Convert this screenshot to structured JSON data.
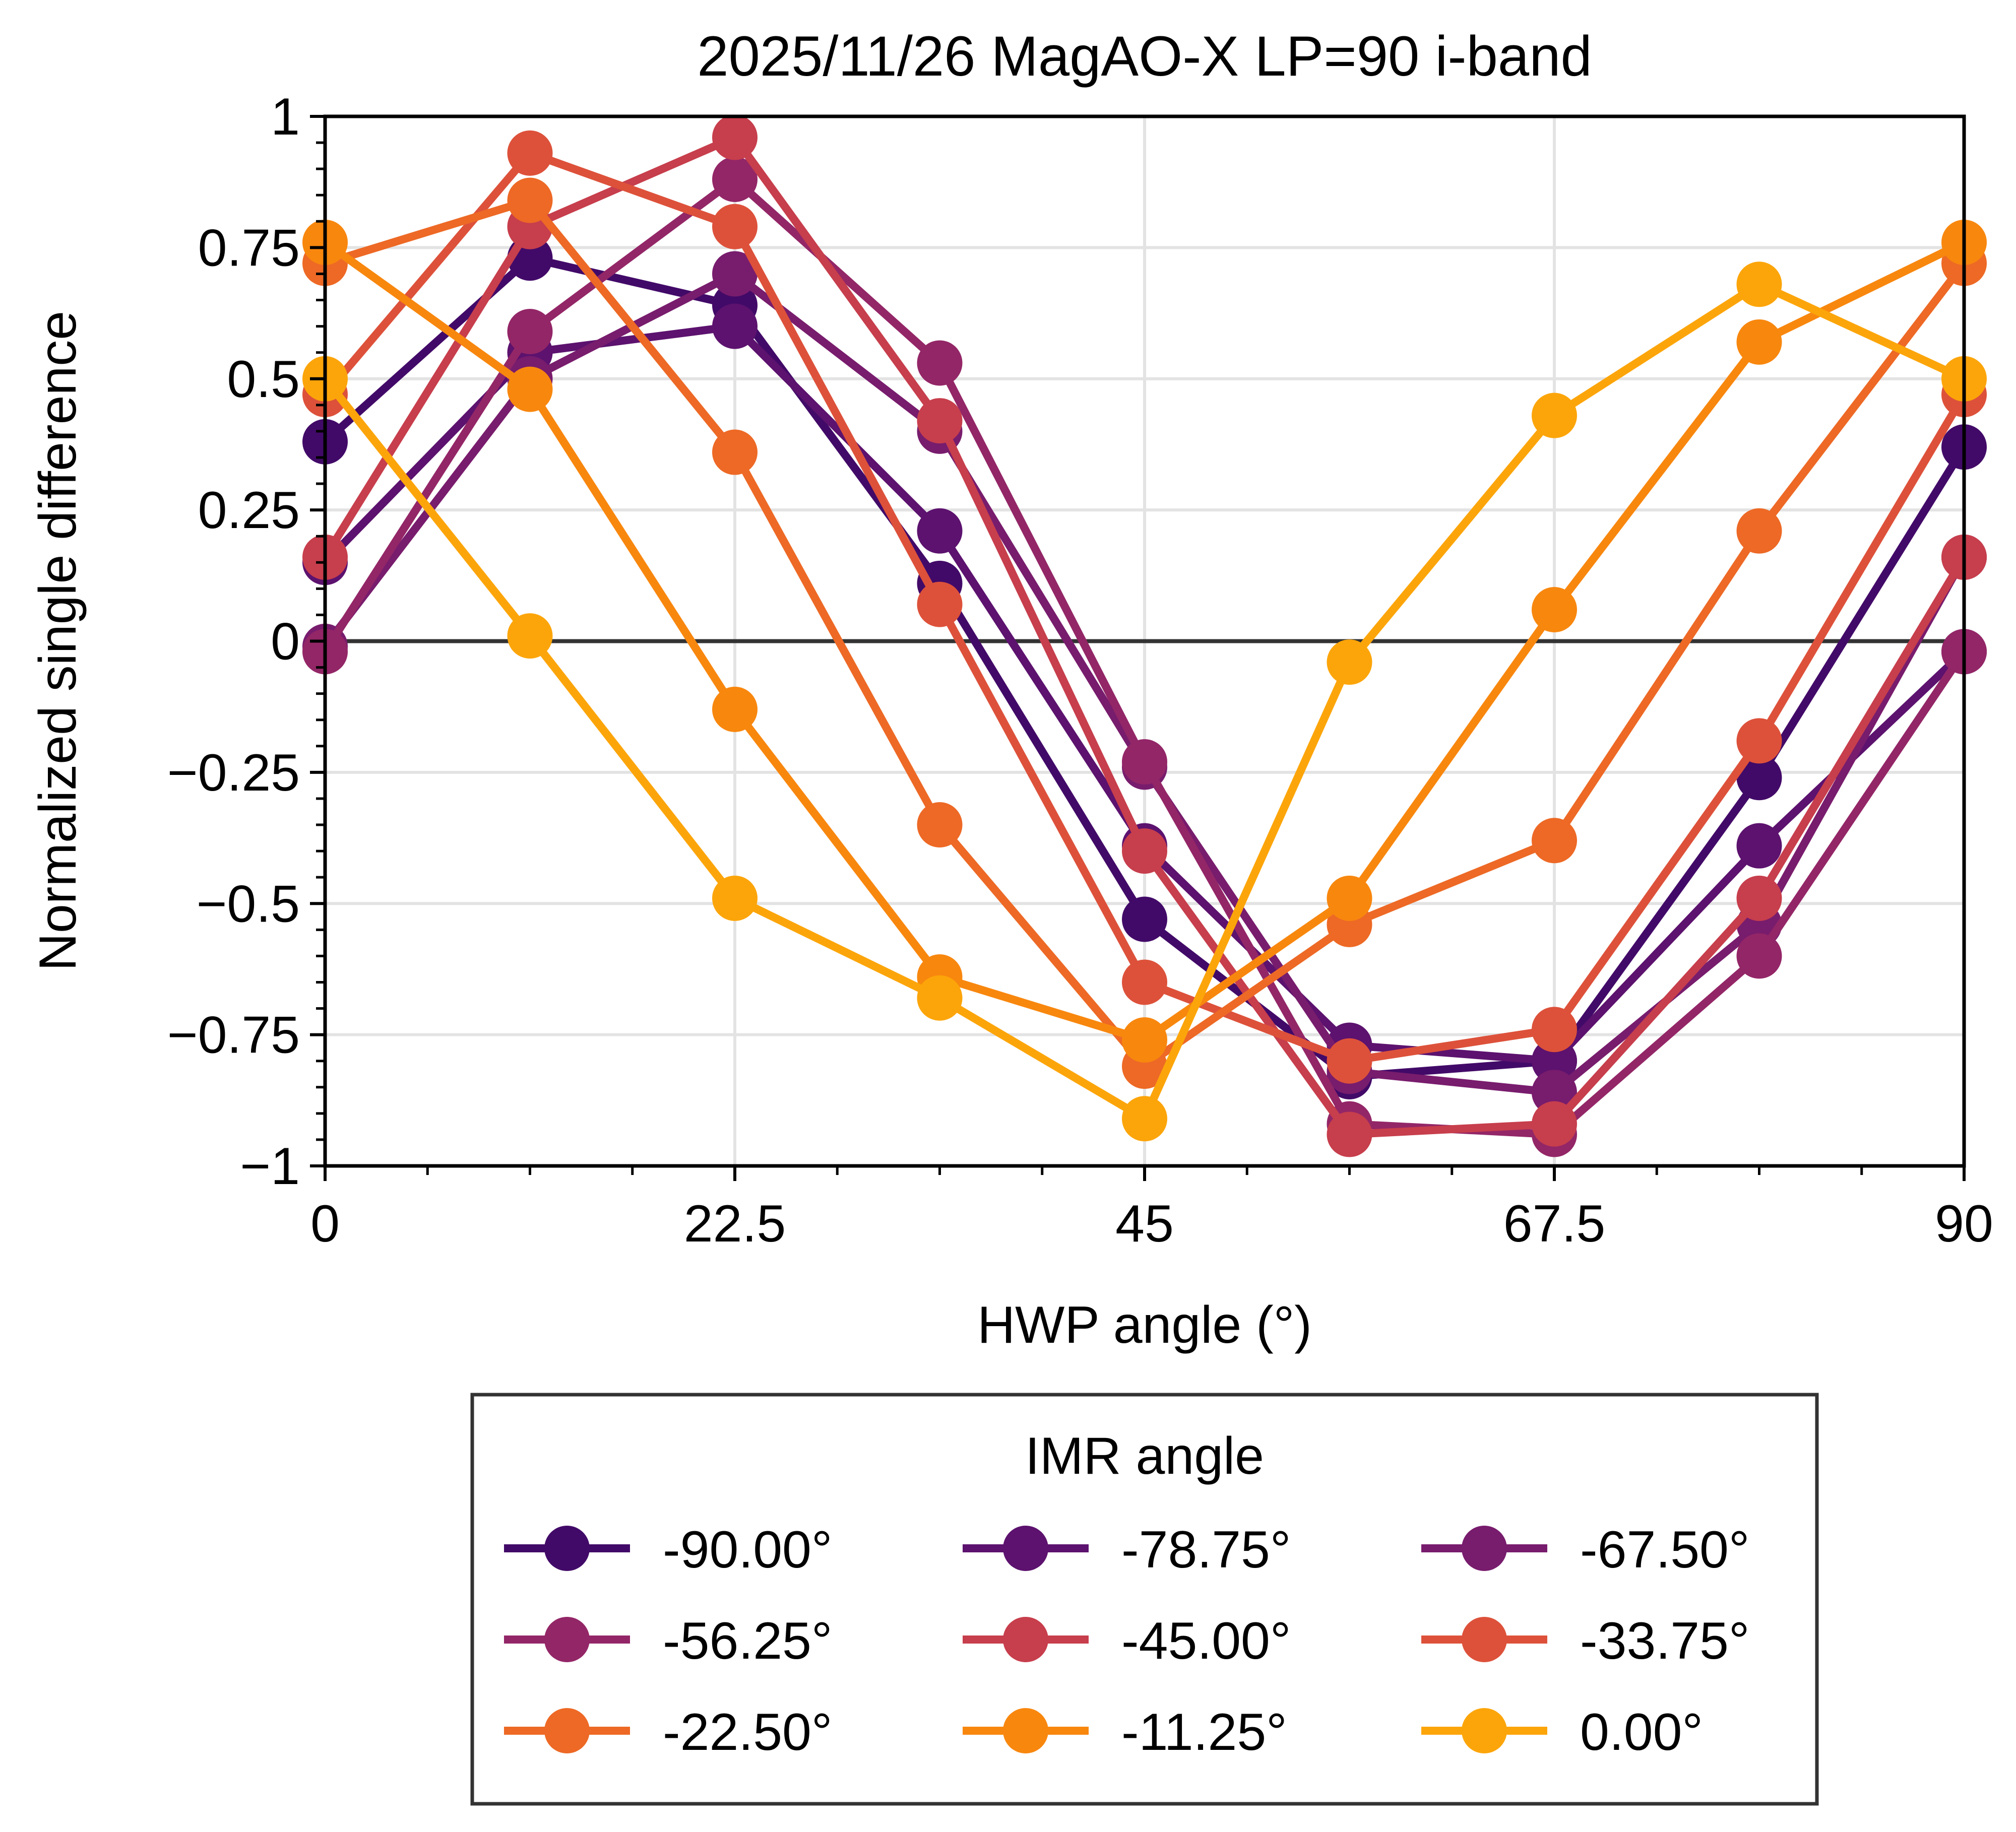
{
  "chart_data": {
    "type": "line",
    "title": "2025/11/26 MagAO-X LP=90 i-band",
    "xlabel": "HWP angle (°)",
    "ylabel": "Normalized single difference",
    "xlim": [
      0,
      90
    ],
    "ylim": [
      -1,
      1
    ],
    "x_ticks": [
      0,
      22.5,
      45,
      67.5,
      90
    ],
    "x_tick_labels": [
      "0",
      "22.5",
      "45",
      "67.5",
      "90"
    ],
    "y_ticks": [
      1,
      0.75,
      0.5,
      0.25,
      0,
      -0.25,
      -0.5,
      -0.75,
      -1
    ],
    "y_tick_labels": [
      "1",
      "0.75",
      "0.5",
      "0.25",
      "0",
      "−0.25",
      "−0.5",
      "−0.75",
      "−1"
    ],
    "grid": true,
    "zero_line": true,
    "x": [
      0,
      11.25,
      22.5,
      33.75,
      45,
      56.25,
      67.5,
      78.75,
      90
    ],
    "legend": {
      "title": "IMR angle",
      "placement": "below",
      "columns": 3
    },
    "series": [
      {
        "name": "-90.00°",
        "color": "#420a68",
        "values": [
          0.38,
          0.73,
          0.64,
          0.11,
          -0.53,
          -0.83,
          -0.8,
          -0.26,
          0.37
        ]
      },
      {
        "name": "-78.75°",
        "color": "#5c126e",
        "values": [
          0.15,
          0.55,
          0.6,
          0.21,
          -0.39,
          -0.77,
          -0.8,
          -0.39,
          -0.02
        ]
      },
      {
        "name": "-67.50°",
        "color": "#781c6d",
        "values": [
          -0.01,
          0.5,
          0.7,
          0.4,
          -0.24,
          -0.82,
          -0.86,
          -0.54,
          0.16
        ]
      },
      {
        "name": "-56.25°",
        "color": "#932667",
        "values": [
          -0.02,
          0.59,
          0.88,
          0.53,
          -0.23,
          -0.92,
          -0.94,
          -0.6,
          -0.02
        ]
      },
      {
        "name": "-45.00°",
        "color": "#c73e4c",
        "values": [
          0.16,
          0.79,
          0.96,
          0.42,
          -0.4,
          -0.94,
          -0.92,
          -0.49,
          0.16
        ]
      },
      {
        "name": "-33.75°",
        "color": "#dd513a",
        "values": [
          0.47,
          0.93,
          0.79,
          0.07,
          -0.65,
          -0.8,
          -0.74,
          -0.19,
          0.47
        ]
      },
      {
        "name": "-22.50°",
        "color": "#ed6925",
        "values": [
          0.72,
          0.84,
          0.36,
          -0.35,
          -0.81,
          -0.54,
          -0.38,
          0.21,
          0.72
        ]
      },
      {
        "name": "-11.25°",
        "color": "#f8870e",
        "values": [
          0.76,
          0.48,
          -0.13,
          -0.64,
          -0.76,
          -0.49,
          0.06,
          0.57,
          0.76
        ]
      },
      {
        "name": "0.00°",
        "color": "#fca50a",
        "values": [
          0.5,
          0.01,
          -0.49,
          -0.68,
          -0.91,
          -0.04,
          0.43,
          0.68,
          0.5
        ]
      }
    ]
  }
}
